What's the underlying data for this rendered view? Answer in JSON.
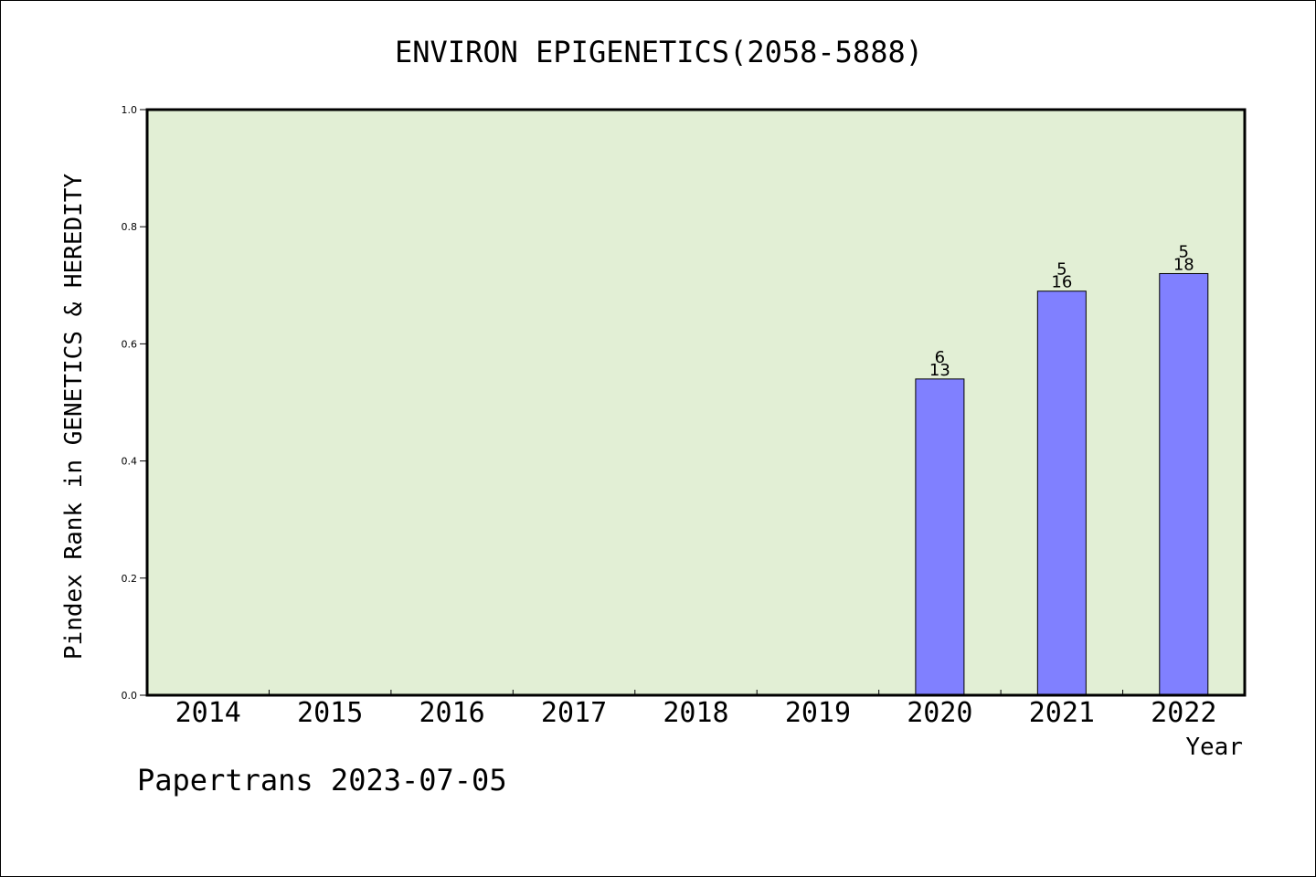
{
  "chart_data": {
    "type": "bar",
    "title": "ENVIRON EPIGENETICS(2058-5888)",
    "xlabel": "Year",
    "ylabel": "Pindex Rank in GENETICS & HEREDITY",
    "categories": [
      "2014",
      "2015",
      "2016",
      "2017",
      "2018",
      "2019",
      "2020",
      "2021",
      "2022"
    ],
    "values": [
      null,
      null,
      null,
      null,
      null,
      null,
      0.54,
      0.69,
      0.72
    ],
    "bar_labels_top": [
      "",
      "",
      "",
      "",
      "",
      "",
      "6",
      "5",
      "5"
    ],
    "bar_labels_bottom": [
      "",
      "",
      "",
      "",
      "",
      "",
      "13",
      "16",
      "18"
    ],
    "ylim": [
      0,
      1.0
    ],
    "yticks": [
      "0.0",
      "0.2",
      "0.4",
      "0.6",
      "0.8",
      "1.0"
    ],
    "ytick_values": [
      0,
      0.2,
      0.4,
      0.6,
      0.8,
      1.0
    ],
    "grid": false,
    "colors": {
      "plot_background": "#e2efd5",
      "bar_fill": "#8080ff",
      "bar_stroke": "#000000"
    }
  },
  "footer": {
    "credit": "Papertrans 2023-07-05"
  }
}
